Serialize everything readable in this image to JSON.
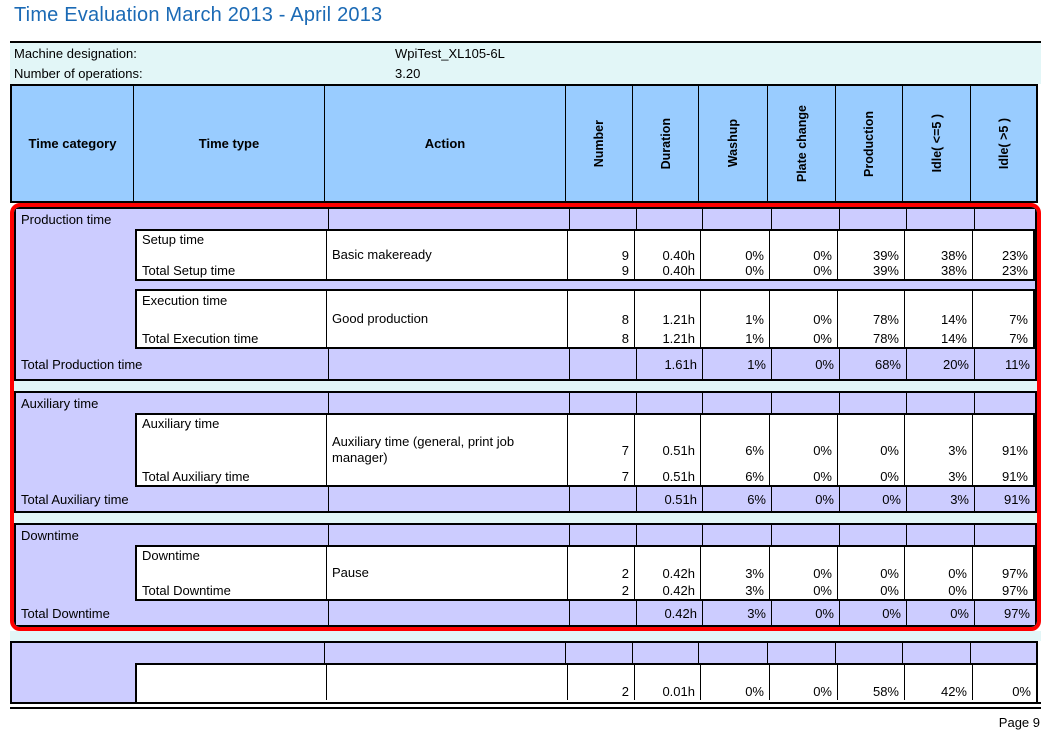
{
  "report": {
    "title": "Time Evaluation March 2013 - April 2013",
    "page_label": "Page 9"
  },
  "info": {
    "machine_label": "Machine designation:",
    "machine_value": "WpiTest_XL105-6L",
    "operations_label": "Number of operations:",
    "operations_value": "3.20"
  },
  "table": {
    "headers": {
      "time_category": "Time category",
      "time_type": "Time type",
      "action": "Action",
      "rotated": [
        "Number",
        "Duration",
        "Washup",
        "Plate change",
        "Production",
        "Idle( <=5 )",
        "Idle( >5 )"
      ]
    },
    "sections": [
      {
        "category": "Production time",
        "subsections": [
          {
            "time_type": "Setup time",
            "action": "Basic makeready",
            "action_values": [
              "9",
              "0.40h",
              "0%",
              "0%",
              "39%",
              "38%",
              "23%"
            ],
            "total_label": "Total Setup time",
            "total_values": [
              "9",
              "0.40h",
              "0%",
              "0%",
              "39%",
              "38%",
              "23%"
            ]
          },
          {
            "time_type": "Execution time",
            "action": "Good production",
            "action_values": [
              "8",
              "1.21h",
              "1%",
              "0%",
              "78%",
              "14%",
              "7%"
            ],
            "total_label": "Total Execution time",
            "total_values": [
              "8",
              "1.21h",
              "1%",
              "0%",
              "78%",
              "14%",
              "7%"
            ]
          }
        ],
        "total_label": "Total Production time",
        "total_values": [
          "",
          "1.61h",
          "1%",
          "0%",
          "68%",
          "20%",
          "11%"
        ]
      },
      {
        "category": "Auxiliary time",
        "subsections": [
          {
            "time_type": "Auxiliary time",
            "action": "Auxiliary time (general, print job manager)",
            "action_values": [
              "7",
              "0.51h",
              "6%",
              "0%",
              "0%",
              "3%",
              "91%"
            ],
            "total_label": "Total Auxiliary time",
            "total_values": [
              "7",
              "0.51h",
              "6%",
              "0%",
              "0%",
              "3%",
              "91%"
            ]
          }
        ],
        "total_label": "Total Auxiliary time",
        "total_values": [
          "",
          "0.51h",
          "6%",
          "0%",
          "0%",
          "3%",
          "91%"
        ]
      },
      {
        "category": "Downtime",
        "subsections": [
          {
            "time_type": "Downtime",
            "action": "Pause",
            "action_values": [
              "2",
              "0.42h",
              "3%",
              "0%",
              "0%",
              "0%",
              "97%"
            ],
            "total_label": "Total Downtime",
            "total_values": [
              "2",
              "0.42h",
              "3%",
              "0%",
              "0%",
              "0%",
              "97%"
            ]
          }
        ],
        "total_label": "Total Downtime",
        "total_values": [
          "",
          "0.42h",
          "3%",
          "0%",
          "0%",
          "0%",
          "97%"
        ]
      }
    ],
    "partial_section": {
      "values": [
        "2",
        "0.01h",
        "0%",
        "0%",
        "58%",
        "42%",
        "0%"
      ]
    }
  },
  "colors": {
    "title_blue": "#1b6ab5",
    "header_blue": "#99ccff",
    "lavender": "#ccccff",
    "pale_cyan": "#e2f6f7",
    "highlight_red": "#ff0000"
  }
}
